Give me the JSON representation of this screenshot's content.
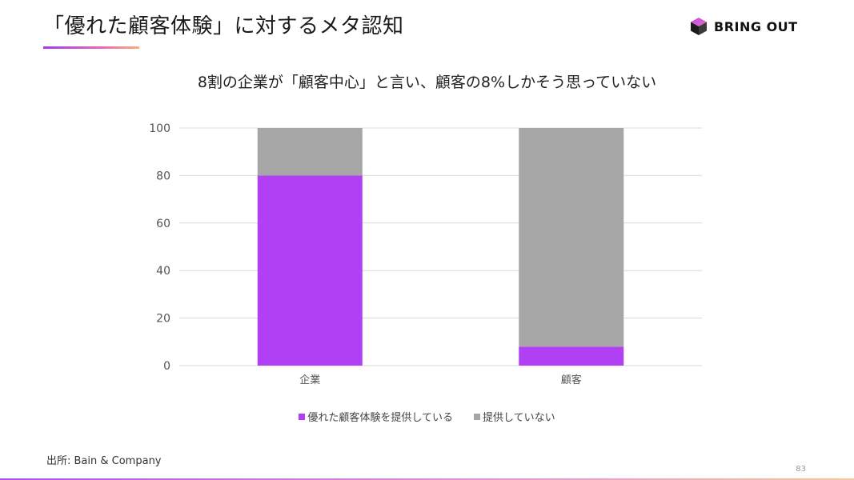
{
  "slide": {
    "title": "「優れた顧客体験」に対するメタ認知",
    "brand": "BRING OUT",
    "source": "出所: Bain & Company",
    "page_number": "83"
  },
  "colors": {
    "accent": "#b13ff4",
    "grey": "#a6a6a6",
    "gridline": "#d9d9d9"
  },
  "chart_data": {
    "type": "bar",
    "stacked": true,
    "title": "8割の企業が「顧客中心」と言い、顧客の8%しかそう思っていない",
    "categories": [
      "企業",
      "顧客"
    ],
    "series": [
      {
        "name": "優れた顧客体験を提供している",
        "values": [
          80,
          8
        ],
        "color": "#b13ff4"
      },
      {
        "name": "提供していない",
        "values": [
          20,
          92
        ],
        "color": "#a6a6a6"
      }
    ],
    "ylim": [
      0,
      100
    ],
    "yticks": [
      0,
      20,
      40,
      60,
      80,
      100
    ],
    "xlabel": "",
    "ylabel": "",
    "grid": true,
    "legend": "bottom"
  }
}
